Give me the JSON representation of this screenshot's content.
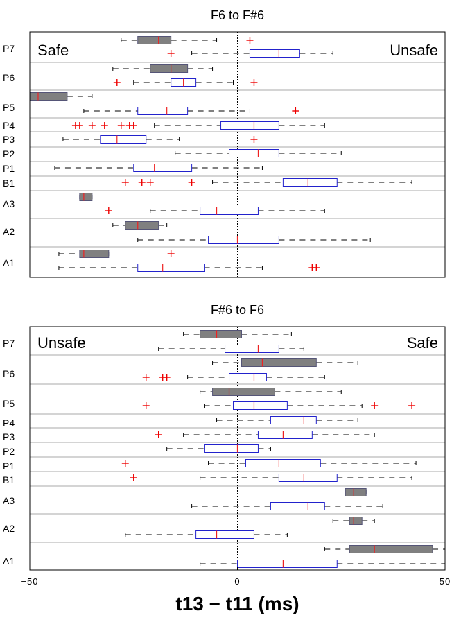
{
  "chart_data": [
    {
      "type": "boxplot",
      "orientation": "horizontal",
      "title": "F6 to F#6",
      "left_annotation": "Safe",
      "right_annotation": "Unsafe",
      "xlim": [
        -50,
        50
      ],
      "groups": [
        "P7",
        "P6",
        "P5",
        "P4",
        "P3",
        "P2",
        "P1",
        "B1",
        "A3",
        "A2",
        "A1"
      ],
      "boxes": [
        {
          "group": "P7",
          "filled": true,
          "whisker_low": -28,
          "q1": -24,
          "median": -19,
          "q3": -16,
          "whisker_high": -5,
          "outliers": [
            3
          ]
        },
        {
          "group": "P7",
          "filled": false,
          "whisker_low": -11,
          "q1": 3,
          "median": 10,
          "q3": 15,
          "whisker_high": 23,
          "outliers": [
            -16
          ]
        },
        {
          "group": "P6",
          "filled": true,
          "whisker_low": -30,
          "q1": -21,
          "median": -16,
          "q3": -12,
          "whisker_high": -6,
          "outliers": []
        },
        {
          "group": "P6",
          "filled": false,
          "whisker_low": -25,
          "q1": -16,
          "median": -13,
          "q3": -10,
          "whisker_high": -1,
          "outliers": [
            -29,
            4
          ]
        },
        {
          "group": "P5",
          "filled": true,
          "whisker_low": -50,
          "q1": -50,
          "median": -48,
          "q3": -41,
          "whisker_high": -35,
          "outliers": []
        },
        {
          "group": "P5",
          "filled": false,
          "whisker_low": -37,
          "q1": -24,
          "median": -17,
          "q3": -12,
          "whisker_high": 3,
          "outliers": [
            14
          ]
        },
        {
          "group": "P4",
          "filled": false,
          "whisker_low": -20,
          "q1": -4,
          "median": 4,
          "q3": 10,
          "whisker_high": 21,
          "outliers": [
            -39,
            -38,
            -35,
            -32,
            -28,
            -26,
            -25
          ]
        },
        {
          "group": "P3",
          "filled": false,
          "whisker_low": -42,
          "q1": -33,
          "median": -29,
          "q3": -22,
          "whisker_high": -14,
          "outliers": [
            4
          ]
        },
        {
          "group": "P2",
          "filled": false,
          "whisker_low": -15,
          "q1": -2,
          "median": 5,
          "q3": 10,
          "whisker_high": 25,
          "outliers": []
        },
        {
          "group": "P1",
          "filled": false,
          "whisker_low": -44,
          "q1": -25,
          "median": -20,
          "q3": -11,
          "whisker_high": 6,
          "outliers": []
        },
        {
          "group": "B1",
          "filled": false,
          "whisker_low": -6,
          "q1": 11,
          "median": 17,
          "q3": 24,
          "whisker_high": 42,
          "outliers": [
            -27,
            -23,
            -21,
            -11
          ]
        },
        {
          "group": "A3",
          "filled": true,
          "whisker_low": -38,
          "q1": -38,
          "median": -37,
          "q3": -35,
          "whisker_high": -35,
          "outliers": []
        },
        {
          "group": "A3",
          "filled": false,
          "whisker_low": -21,
          "q1": -9,
          "median": -5,
          "q3": 5,
          "whisker_high": 21,
          "outliers": [
            -31
          ]
        },
        {
          "group": "A2",
          "filled": true,
          "whisker_low": -30,
          "q1": -27,
          "median": -24,
          "q3": -19,
          "whisker_high": -17,
          "outliers": []
        },
        {
          "group": "A2",
          "filled": false,
          "whisker_low": -24,
          "q1": -7,
          "median": 0,
          "q3": 10,
          "whisker_high": 32,
          "outliers": []
        },
        {
          "group": "A1",
          "filled": true,
          "whisker_low": -43,
          "q1": -38,
          "median": -37,
          "q3": -31,
          "whisker_high": -31,
          "outliers": [
            -16
          ]
        },
        {
          "group": "A1",
          "filled": false,
          "whisker_low": -43,
          "q1": -24,
          "median": -18,
          "q3": -8,
          "whisker_high": 6,
          "outliers": [
            18,
            19
          ]
        }
      ]
    },
    {
      "type": "boxplot",
      "orientation": "horizontal",
      "title": "F#6 to F6",
      "left_annotation": "Unsafe",
      "right_annotation": "Safe",
      "xlim": [
        -50,
        50
      ],
      "xticks": [
        "−50",
        "0",
        "50"
      ],
      "xlabel": "t13 − t11 (ms)",
      "groups": [
        "P7",
        "P6",
        "P5",
        "P4",
        "P3",
        "P2",
        "P1",
        "B1",
        "A3",
        "A2",
        "A1"
      ],
      "boxes": [
        {
          "group": "P7",
          "filled": true,
          "whisker_low": -13,
          "q1": -9,
          "median": -5,
          "q3": 1,
          "whisker_high": 13,
          "outliers": []
        },
        {
          "group": "P7",
          "filled": false,
          "whisker_low": -19,
          "q1": -3,
          "median": 5,
          "q3": 10,
          "whisker_high": 16,
          "outliers": []
        },
        {
          "group": "P6",
          "filled": true,
          "whisker_low": -6,
          "q1": 1,
          "median": 6,
          "q3": 19,
          "whisker_high": 29,
          "outliers": []
        },
        {
          "group": "P6",
          "filled": false,
          "whisker_low": -12,
          "q1": -2,
          "median": 4,
          "q3": 7,
          "whisker_high": 21,
          "outliers": [
            -22,
            -18,
            -17
          ]
        },
        {
          "group": "P5",
          "filled": true,
          "whisker_low": -9,
          "q1": -6,
          "median": -2,
          "q3": 9,
          "whisker_high": 25,
          "outliers": []
        },
        {
          "group": "P5",
          "filled": false,
          "whisker_low": -8,
          "q1": -1,
          "median": 4,
          "q3": 12,
          "whisker_high": 30,
          "outliers": [
            -22,
            33,
            42
          ]
        },
        {
          "group": "P4",
          "filled": false,
          "whisker_low": -5,
          "q1": 8,
          "median": 16,
          "q3": 19,
          "whisker_high": 29,
          "outliers": []
        },
        {
          "group": "P3",
          "filled": false,
          "whisker_low": -13,
          "q1": 5,
          "median": 11,
          "q3": 18,
          "whisker_high": 33,
          "outliers": [
            -19
          ]
        },
        {
          "group": "P2",
          "filled": false,
          "whisker_low": -17,
          "q1": -8,
          "median": 0,
          "q3": 5,
          "whisker_high": 8,
          "outliers": []
        },
        {
          "group": "P1",
          "filled": false,
          "whisker_low": -7,
          "q1": 2,
          "median": 10,
          "q3": 20,
          "whisker_high": 43,
          "outliers": [
            -27
          ]
        },
        {
          "group": "B1",
          "filled": false,
          "whisker_low": -9,
          "q1": 10,
          "median": 16,
          "q3": 24,
          "whisker_high": 42,
          "outliers": [
            -25
          ]
        },
        {
          "group": "A3",
          "filled": true,
          "whisker_low": 26,
          "q1": 26,
          "median": 28,
          "q3": 31,
          "whisker_high": 31,
          "outliers": []
        },
        {
          "group": "A3",
          "filled": false,
          "whisker_low": -11,
          "q1": 8,
          "median": 17,
          "q3": 21,
          "whisker_high": 35,
          "outliers": []
        },
        {
          "group": "A2",
          "filled": true,
          "whisker_low": 23,
          "q1": 27,
          "median": 28,
          "q3": 30,
          "whisker_high": 33,
          "outliers": []
        },
        {
          "group": "A2",
          "filled": false,
          "whisker_low": -27,
          "q1": -10,
          "median": -5,
          "q3": 4,
          "whisker_high": 12,
          "outliers": []
        },
        {
          "group": "A1",
          "filled": true,
          "whisker_low": 21,
          "q1": 27,
          "median": 33,
          "q3": 47,
          "whisker_high": 50,
          "outliers": []
        },
        {
          "group": "A1",
          "filled": false,
          "whisker_low": -9,
          "q1": 0,
          "median": 11,
          "q3": 24,
          "whisker_high": 50,
          "outliers": []
        }
      ]
    }
  ],
  "colors": {
    "filled_box": "#808080",
    "open_box_edge": "#2222cc",
    "median": "#ee2222",
    "outlier": "#ee0000",
    "whisker": "#000000",
    "separator": "#aaaaaa"
  }
}
